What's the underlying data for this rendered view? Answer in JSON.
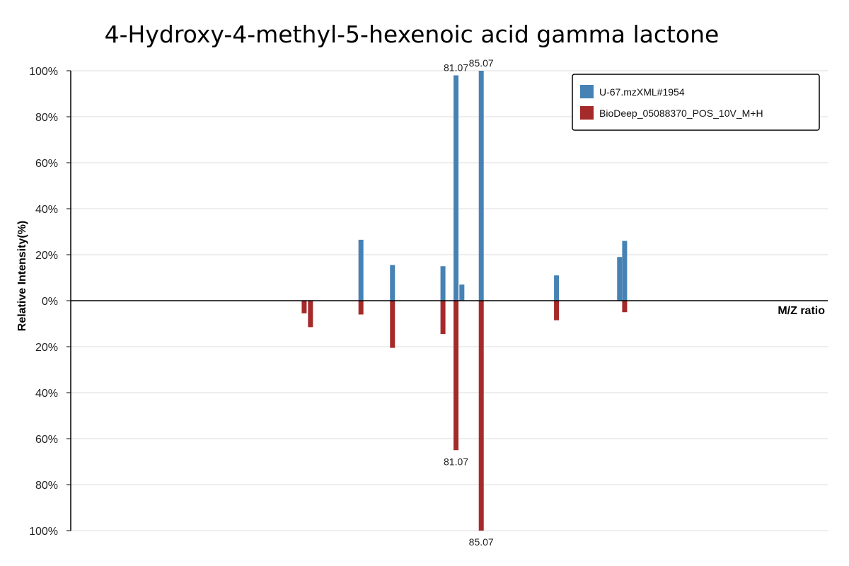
{
  "chart_data": {
    "type": "bar",
    "title": "4-Hydroxy-4-methyl-5-hexenoic acid gamma lactone",
    "xlabel": "M/Z ratio",
    "ylabel": "Relative Intensity(%)",
    "ylim": [
      -100,
      100
    ],
    "yticks": [
      "100%",
      "80%",
      "60%",
      "40%",
      "20%",
      "0%",
      "20%",
      "40%",
      "60%",
      "80%",
      "100%"
    ],
    "grid": true,
    "legend_position": "top-right",
    "series": [
      {
        "name": "U-67.mzXML#1954",
        "color": "#4682B4",
        "direction": "up",
        "points": [
          {
            "mz": 66.0,
            "intensity": 26.5
          },
          {
            "mz": 71.0,
            "intensity": 15.5
          },
          {
            "mz": 79.0,
            "intensity": 15.0
          },
          {
            "mz": 81.07,
            "intensity": 98.0,
            "label": "81.07"
          },
          {
            "mz": 82.0,
            "intensity": 7.0
          },
          {
            "mz": 85.07,
            "intensity": 100.0,
            "label": "85.07"
          },
          {
            "mz": 97.0,
            "intensity": 11.0
          },
          {
            "mz": 107.0,
            "intensity": 19.0
          },
          {
            "mz": 107.8,
            "intensity": 26.0
          }
        ]
      },
      {
        "name": "BioDeep_05088370_POS_10V_M+H",
        "color": "#A52A2A",
        "direction": "down",
        "points": [
          {
            "mz": 57.0,
            "intensity": 5.5
          },
          {
            "mz": 58.0,
            "intensity": 11.5
          },
          {
            "mz": 66.0,
            "intensity": 6.0
          },
          {
            "mz": 71.0,
            "intensity": 20.5
          },
          {
            "mz": 79.0,
            "intensity": 14.5
          },
          {
            "mz": 81.07,
            "intensity": 65.0,
            "label": "81.07"
          },
          {
            "mz": 85.07,
            "intensity": 100.0,
            "label": "85.07"
          },
          {
            "mz": 97.0,
            "intensity": 8.5
          },
          {
            "mz": 107.8,
            "intensity": 5.0
          }
        ]
      }
    ]
  }
}
